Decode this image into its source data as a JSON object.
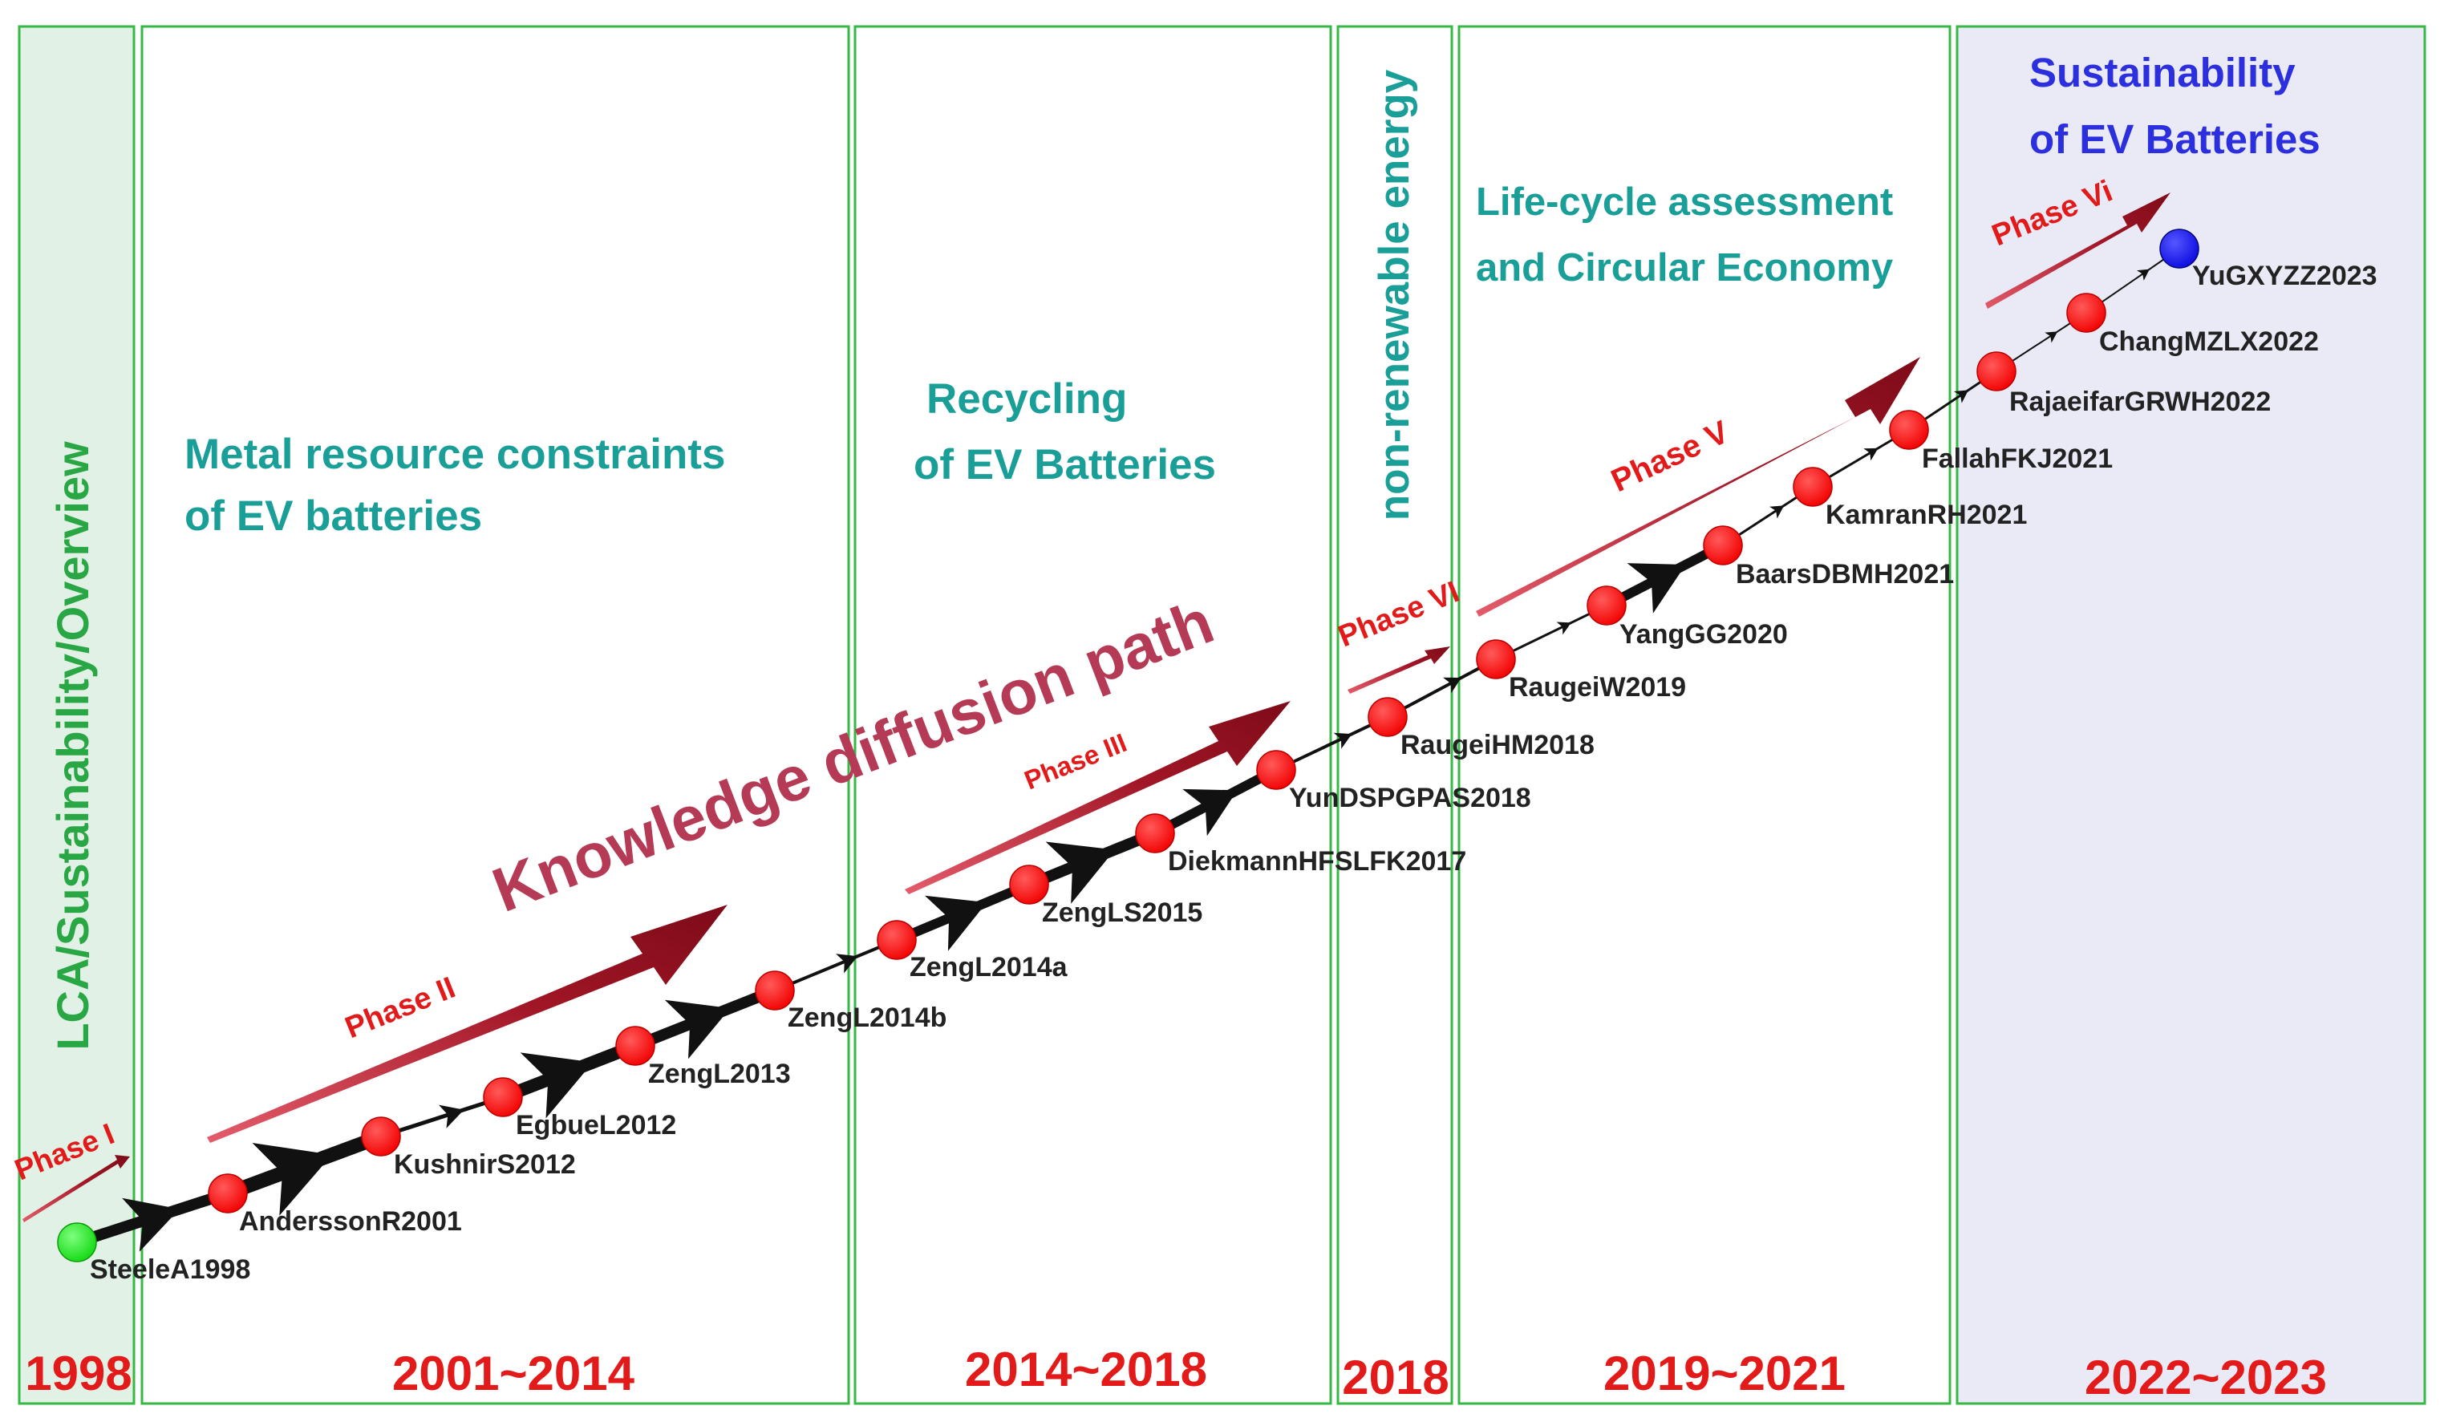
{
  "title": "Knowledge diffusion path",
  "colors": {
    "panel_border": "#35b844",
    "panel_fill_first": "#e2f1e5",
    "panel_fill_last": "#eaeaf7",
    "year_text": "#e21a1a",
    "topic_text": "#1a9e98",
    "first_topic_text": "#2aa745",
    "last_topic_text": "#2b2fde",
    "phase_arrow": "#8d0f1e",
    "title_text": "#b53a55",
    "node_default": "#ff1414",
    "node_start": "#16e016",
    "node_end": "#1010e8",
    "path": "#111111"
  },
  "periods": [
    {
      "year": "1998",
      "topic": [
        "LCA/Sustainability/Overview"
      ]
    },
    {
      "year": "2001~2014",
      "topic": [
        "Metal resource constraints",
        "of EV batteries"
      ]
    },
    {
      "year": "2014~2018",
      "topic": [
        "Recycling",
        "of EV Batteries"
      ]
    },
    {
      "year": "2018",
      "topic": [
        "non-renewable energy"
      ]
    },
    {
      "year": "2019~2021",
      "topic": [
        "Life-cycle assessment",
        "and Circular Economy"
      ]
    },
    {
      "year": "2022~2023",
      "topic": [
        "Sustainability",
        "of EV Batteries"
      ]
    }
  ],
  "phases": [
    "Phase I",
    "Phase  II",
    "Phase  III",
    "Phase VI",
    "Phase  V",
    "Phase  Vi"
  ],
  "nodes": [
    {
      "label": "SteeleA1998",
      "kind": "start"
    },
    {
      "label": "AnderssonR2001",
      "kind": "default"
    },
    {
      "label": "KushnirS2012",
      "kind": "default"
    },
    {
      "label": "EgbueL2012",
      "kind": "default"
    },
    {
      "label": "ZengL2013",
      "kind": "default"
    },
    {
      "label": "ZengL2014b",
      "kind": "default"
    },
    {
      "label": "ZengL2014a",
      "kind": "default"
    },
    {
      "label": "ZengLS2015",
      "kind": "default"
    },
    {
      "label": "DiekmannHFSLFK2017",
      "kind": "default"
    },
    {
      "label": "YunDSPGPAS2018",
      "kind": "default"
    },
    {
      "label": "RaugeiHM2018",
      "kind": "default"
    },
    {
      "label": "RaugeiW2019",
      "kind": "default"
    },
    {
      "label": "YangGG2020",
      "kind": "default"
    },
    {
      "label": "BaarsDBMH2021",
      "kind": "default"
    },
    {
      "label": "KamranRH2021",
      "kind": "default"
    },
    {
      "label": "FallahFKJ2021",
      "kind": "default"
    },
    {
      "label": "RajaeifarGRWH2022",
      "kind": "default"
    },
    {
      "label": "ChangMZLX2022",
      "kind": "default"
    },
    {
      "label": "YuGXYZZ2023",
      "kind": "end"
    }
  ]
}
